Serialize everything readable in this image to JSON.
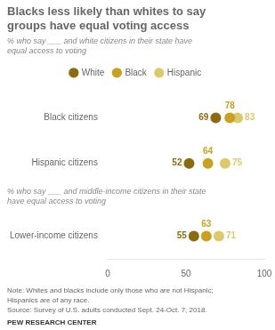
{
  "chart_data": {
    "type": "dot",
    "title": "Blacks less likely than whites to say\ngroups have equal voting access",
    "subtitle": "% who say ___ and white citizens in their state have\nequal access to voting",
    "annotations": [
      "% who say ___ and middle-income citizens in their state\nhave equal access to voting",
      "Note: Whites and blacks include only those who are not Hispanic;",
      "Hispanics are of any race.",
      "Source: Survey of U.S. adults conducted Sept. 24-Oct. 7, 2018.",
      "PEW RESEARCH CENTER"
    ],
    "categories": [
      "Black citizens",
      "Hispanic citizens",
      "Lower-income citizens"
    ],
    "series": [
      {
        "name": "White",
        "color": "#8B6B10",
        "values": [
          69,
          52,
          55
        ]
      },
      {
        "name": "Black",
        "color": "#C9A020",
        "values": [
          78,
          64,
          63
        ]
      },
      {
        "name": "Hispanic",
        "color": "#DEC96A",
        "values": [
          83,
          75,
          71
        ]
      }
    ],
    "xlim": [
      0,
      100
    ],
    "xticks": [
      0,
      50,
      100
    ],
    "grid": false,
    "legend": "top",
    "data_labels": true
  }
}
